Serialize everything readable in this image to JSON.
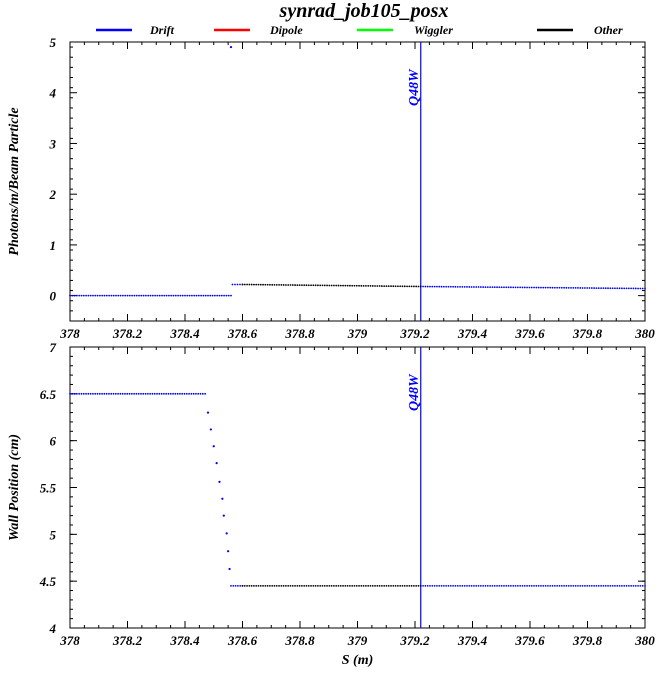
{
  "title": "synrad_job105_posx",
  "legend": [
    {
      "name": "Drift",
      "color": "#0000ff"
    },
    {
      "name": "Dipole",
      "color": "#ff0000"
    },
    {
      "name": "Wiggler",
      "color": "#00ff00"
    },
    {
      "name": "Other",
      "color": "#000000"
    }
  ],
  "chart_data": [
    {
      "type": "scatter",
      "ylabel": "Photons/m/Beam Particle",
      "xlabel": "",
      "xlim": [
        378,
        380
      ],
      "ylim": [
        -0.5,
        5
      ],
      "x_ticks": [
        "378",
        "378.2",
        "378.4",
        "378.6",
        "378.8",
        "379",
        "379.2",
        "379.4",
        "379.6",
        "379.8",
        "380"
      ],
      "y_ticks": [
        "0",
        "1",
        "2",
        "3",
        "4",
        "5"
      ],
      "marker": {
        "label": "Q48W",
        "x": 379.22,
        "color": "#0000ff"
      },
      "series": [
        {
          "name": "Drift",
          "color": "#0000ff",
          "segments": [
            {
              "x_start": 378.0,
              "x_end": 378.56,
              "y_start": 0.0,
              "y_end": 0.0
            },
            {
              "x_start": 378.565,
              "x_end": 378.6,
              "y_start": 0.22,
              "y_end": 0.22
            },
            {
              "x_start": 379.22,
              "x_end": 380.0,
              "y_start": 0.18,
              "y_end": 0.14
            }
          ],
          "points": [
            {
              "x": 378.56,
              "y": 4.9
            }
          ]
        },
        {
          "name": "Other",
          "color": "#000000",
          "segments": [
            {
              "x_start": 378.6,
              "x_end": 379.22,
              "y_start": 0.22,
              "y_end": 0.18
            }
          ]
        }
      ]
    },
    {
      "type": "scatter",
      "ylabel": "Wall Position (cm)",
      "xlabel": "S (m)",
      "xlim": [
        378,
        380
      ],
      "ylim": [
        4,
        7
      ],
      "x_ticks": [
        "378",
        "378.2",
        "378.4",
        "378.6",
        "378.8",
        "379",
        "379.2",
        "379.4",
        "379.6",
        "379.8",
        "380"
      ],
      "y_ticks": [
        "4",
        "4.5",
        "5",
        "5.5",
        "6",
        "6.5",
        "7"
      ],
      "marker": {
        "label": "Q48W",
        "x": 379.22,
        "color": "#0000ff"
      },
      "series": [
        {
          "name": "Drift",
          "color": "#0000ff",
          "segments": [
            {
              "x_start": 378.0,
              "x_end": 378.47,
              "y_start": 6.5,
              "y_end": 6.5
            },
            {
              "x_start": 378.56,
              "x_end": 378.6,
              "y_start": 4.45,
              "y_end": 4.45
            },
            {
              "x_start": 379.22,
              "x_end": 380.0,
              "y_start": 4.45,
              "y_end": 4.45
            }
          ],
          "points": [
            {
              "x": 378.48,
              "y": 6.3
            },
            {
              "x": 378.49,
              "y": 6.12
            },
            {
              "x": 378.5,
              "y": 5.94
            },
            {
              "x": 378.51,
              "y": 5.76
            },
            {
              "x": 378.52,
              "y": 5.56
            },
            {
              "x": 378.53,
              "y": 5.38
            },
            {
              "x": 378.535,
              "y": 5.2
            },
            {
              "x": 378.545,
              "y": 5.01
            },
            {
              "x": 378.55,
              "y": 4.82
            },
            {
              "x": 378.555,
              "y": 4.63
            }
          ]
        },
        {
          "name": "Other",
          "color": "#000000",
          "segments": [
            {
              "x_start": 378.6,
              "x_end": 379.22,
              "y_start": 4.45,
              "y_end": 4.45
            }
          ]
        }
      ]
    }
  ]
}
